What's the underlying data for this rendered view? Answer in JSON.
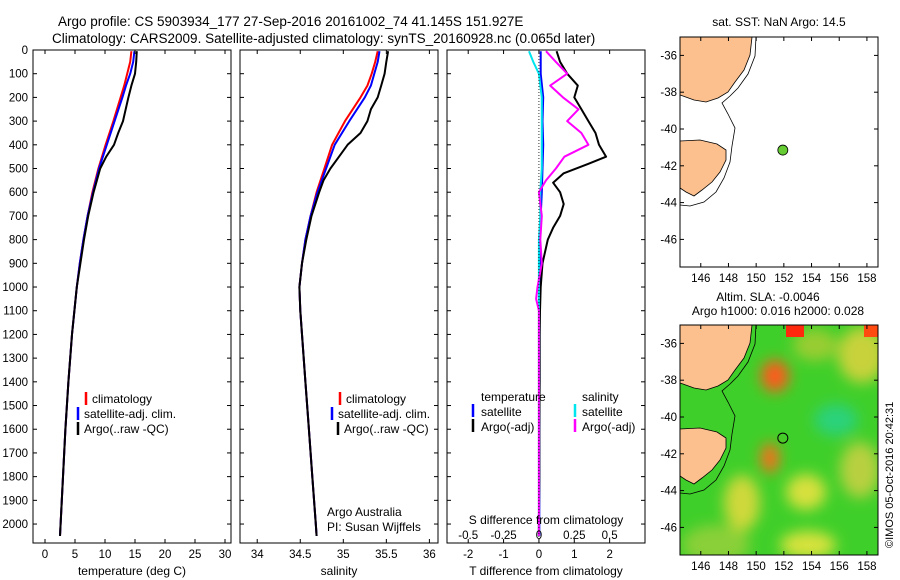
{
  "titles": {
    "line1": "Argo profile: CS 5903934_177 27-Sep-2016 20161002_74 41.145S 151.927E",
    "line2": "Climatology: CARS2009. Satellite-adjusted climatology: synTS_20160928.nc (0.065d later)"
  },
  "colors": {
    "climatology": "#ff0000",
    "satellite": "#0000ff",
    "argo": "#000000",
    "s_satellite": "#00e5ee",
    "s_argo": "#ff00ff",
    "land": "#fcc08e",
    "float": "#66cc33"
  },
  "chart_data": [
    {
      "type": "line",
      "xlabel": "temperature (deg C)",
      "xlim": [
        -2,
        31
      ],
      "xticks": [
        0,
        5,
        10,
        15,
        20,
        25,
        30
      ],
      "ylim": [
        2080,
        0
      ],
      "yticks": [
        0,
        100,
        200,
        300,
        400,
        500,
        600,
        700,
        800,
        900,
        1000,
        1100,
        1200,
        1300,
        1400,
        1500,
        1600,
        1700,
        1800,
        1900,
        2000
      ],
      "legend": [
        "climatology",
        "satellite-adj. clim.",
        "Argo(..raw -QC)"
      ],
      "series": [
        {
          "name": "climatology",
          "y": [
            5,
            50,
            100,
            150,
            200,
            300,
            400,
            500,
            600,
            700,
            800,
            900,
            1000,
            1200,
            1400,
            1600,
            1800,
            2000,
            2050
          ],
          "x": [
            14.4,
            14.2,
            13.7,
            13.2,
            12.6,
            11.4,
            10.1,
            8.9,
            7.9,
            7.1,
            6.4,
            5.8,
            5.3,
            4.5,
            3.9,
            3.4,
            3.0,
            2.6,
            2.5
          ]
        },
        {
          "name": "satellite-adj. clim.",
          "y": [
            5,
            50,
            100,
            150,
            200,
            300,
            400,
            500,
            600,
            700,
            800,
            900,
            1000,
            1200,
            1400,
            1600,
            1800,
            2000,
            2050
          ],
          "x": [
            14.9,
            14.7,
            14.2,
            13.5,
            12.9,
            11.6,
            10.3,
            9.0,
            8.0,
            7.1,
            6.4,
            5.8,
            5.3,
            4.5,
            3.9,
            3.4,
            3.0,
            2.6,
            2.5
          ]
        },
        {
          "name": "Argo(..raw -QC)",
          "y": [
            5,
            50,
            100,
            150,
            200,
            300,
            350,
            400,
            450,
            500,
            600,
            700,
            800,
            900,
            1000,
            1200,
            1400,
            1600,
            1800,
            2000,
            2050
          ],
          "x": [
            15.3,
            15.2,
            15.0,
            14.4,
            13.9,
            13.0,
            12.2,
            11.5,
            10.2,
            9.2,
            8.1,
            7.2,
            6.5,
            5.9,
            5.3,
            4.5,
            3.9,
            3.4,
            3.0,
            2.6,
            2.5
          ]
        }
      ]
    },
    {
      "type": "line",
      "xlabel": "salinity",
      "xlim": [
        33.8,
        36.1
      ],
      "xticks": [
        34,
        34.5,
        35,
        35.5,
        36
      ],
      "ylim": [
        2080,
        0
      ],
      "legend": [
        "climatology",
        "satellite-adj. clim.",
        "Argo(..raw -QC)"
      ],
      "annotation": [
        "Argo Australia",
        "PI: Susan Wijffels"
      ],
      "series": [
        {
          "name": "climatology",
          "y": [
            5,
            50,
            100,
            150,
            200,
            300,
            400,
            500,
            600,
            700,
            800,
            900,
            1000,
            1100,
            1200,
            1400,
            1600,
            1800,
            2000,
            2050
          ],
          "x": [
            35.4,
            35.37,
            35.33,
            35.28,
            35.2,
            35.02,
            34.87,
            34.78,
            34.69,
            34.62,
            34.56,
            34.52,
            34.49,
            34.5,
            34.52,
            34.56,
            34.6,
            34.64,
            34.68,
            34.69
          ]
        },
        {
          "name": "satellite-adj. clim.",
          "y": [
            5,
            50,
            100,
            150,
            200,
            300,
            400,
            500,
            600,
            700,
            800,
            900,
            1000,
            1100,
            1200,
            1400,
            1600,
            1800,
            2000,
            2050
          ],
          "x": [
            35.42,
            35.4,
            35.36,
            35.32,
            35.25,
            35.07,
            34.9,
            34.8,
            34.7,
            34.62,
            34.56,
            34.52,
            34.49,
            34.5,
            34.52,
            34.56,
            34.6,
            34.64,
            34.68,
            34.69
          ]
        },
        {
          "name": "Argo(..raw -QC)",
          "y": [
            5,
            50,
            100,
            150,
            200,
            250,
            300,
            350,
            400,
            450,
            500,
            550,
            600,
            700,
            800,
            900,
            1000,
            1100,
            1200,
            1400,
            1600,
            1800,
            2000,
            2050
          ],
          "x": [
            35.52,
            35.5,
            35.48,
            35.44,
            35.4,
            35.32,
            35.28,
            35.2,
            35.05,
            34.95,
            34.85,
            34.77,
            34.72,
            34.63,
            34.57,
            34.52,
            34.49,
            34.5,
            34.52,
            34.56,
            34.6,
            34.64,
            34.68,
            34.69
          ]
        }
      ]
    },
    {
      "type": "line",
      "xlabel": "T difference from climatology",
      "x2label": "S difference from climatology",
      "xlim": [
        -2.6,
        3.0
      ],
      "xticks": [
        -2,
        -1,
        0,
        1,
        2
      ],
      "x2ticks": [
        -0.5,
        -0.25,
        0,
        0.25,
        0.5
      ],
      "ylim": [
        2080,
        0
      ],
      "legend_temperature": [
        "temperature",
        "satellite",
        "Argo(-adj)"
      ],
      "legend_salinity": [
        "salinity",
        "satellite",
        "Argo(-adj)"
      ],
      "series": [
        {
          "name": "satellite",
          "y": [
            5,
            100,
            200,
            300,
            400,
            500,
            600,
            700,
            800,
            900,
            1000,
            1100,
            1200,
            1400,
            1600,
            1800,
            2000,
            2050
          ],
          "x": [
            0.05,
            0.05,
            0.12,
            0.1,
            0.12,
            0.1,
            0.08,
            0.05,
            0.03,
            0.03,
            0.03,
            0.02,
            0.02,
            0.02,
            0.01,
            0.01,
            0.01,
            0.01
          ]
        },
        {
          "name": "Argo(-adj)",
          "y": [
            5,
            50,
            100,
            150,
            200,
            250,
            300,
            350,
            400,
            450,
            480,
            520,
            560,
            600,
            650,
            700,
            750,
            800,
            900,
            1000,
            1100,
            1200,
            1400,
            1600,
            1800,
            2000,
            2050
          ],
          "x": [
            0.5,
            0.6,
            0.8,
            1.1,
            1.0,
            1.2,
            1.4,
            1.6,
            1.7,
            1.9,
            1.4,
            0.7,
            0.4,
            0.6,
            0.7,
            0.6,
            0.4,
            0.25,
            0.1,
            0.05,
            0.03,
            0.02,
            0.02,
            0.01,
            0.01,
            0.0,
            0.0
          ]
        },
        {
          "name": "satellite",
          "y": [
            5,
            50,
            100,
            150,
            200,
            300,
            400,
            500,
            600,
            700,
            800,
            900,
            1000,
            1100,
            1200,
            1400,
            1600,
            1800,
            2000,
            2050
          ],
          "x": [
            -0.07,
            -0.04,
            0.0,
            0.01,
            0.02,
            0.02,
            0.02,
            0.02,
            0.01,
            0.01,
            0.0,
            0.0,
            0.0,
            0.0,
            0.0,
            0.0,
            0.0,
            0.0,
            0.0,
            0.0
          ]
        },
        {
          "name": "Argo(-adj)",
          "y": [
            5,
            50,
            100,
            150,
            200,
            250,
            300,
            350,
            400,
            450,
            500,
            550,
            600,
            700,
            800,
            900,
            1000,
            1050,
            1100,
            1200,
            1400,
            1600,
            1800,
            2000,
            2050
          ],
          "x": [
            0.05,
            0.12,
            0.2,
            0.08,
            0.17,
            0.28,
            0.2,
            0.3,
            0.35,
            0.18,
            0.12,
            0.05,
            0.0,
            0.02,
            0.01,
            0.02,
            -0.01,
            -0.02,
            0.0,
            0.0,
            0.0,
            0.0,
            0.0,
            0.0,
            0.0
          ]
        }
      ]
    }
  ],
  "map1": {
    "title": "sat. SST: NaN Argo: 14.5",
    "xticks": [
      146,
      148,
      150,
      152,
      154,
      156,
      158
    ],
    "yticks": [
      -36,
      -38,
      -40,
      -42,
      -44,
      -46
    ],
    "float": {
      "lon": 151.927,
      "lat": -41.145
    }
  },
  "map2": {
    "title1": "Altim. SLA: -0.0046",
    "title2": "Argo h1000: 0.016 h2000: 0.028",
    "xticks": [
      146,
      148,
      150,
      152,
      154,
      156,
      158
    ],
    "yticks": [
      -36,
      -38,
      -40,
      -42,
      -44,
      -46
    ],
    "float": {
      "lon": 151.927,
      "lat": -41.145
    }
  },
  "credit": "©IMOS 05-Oct-2016 20:42:31"
}
